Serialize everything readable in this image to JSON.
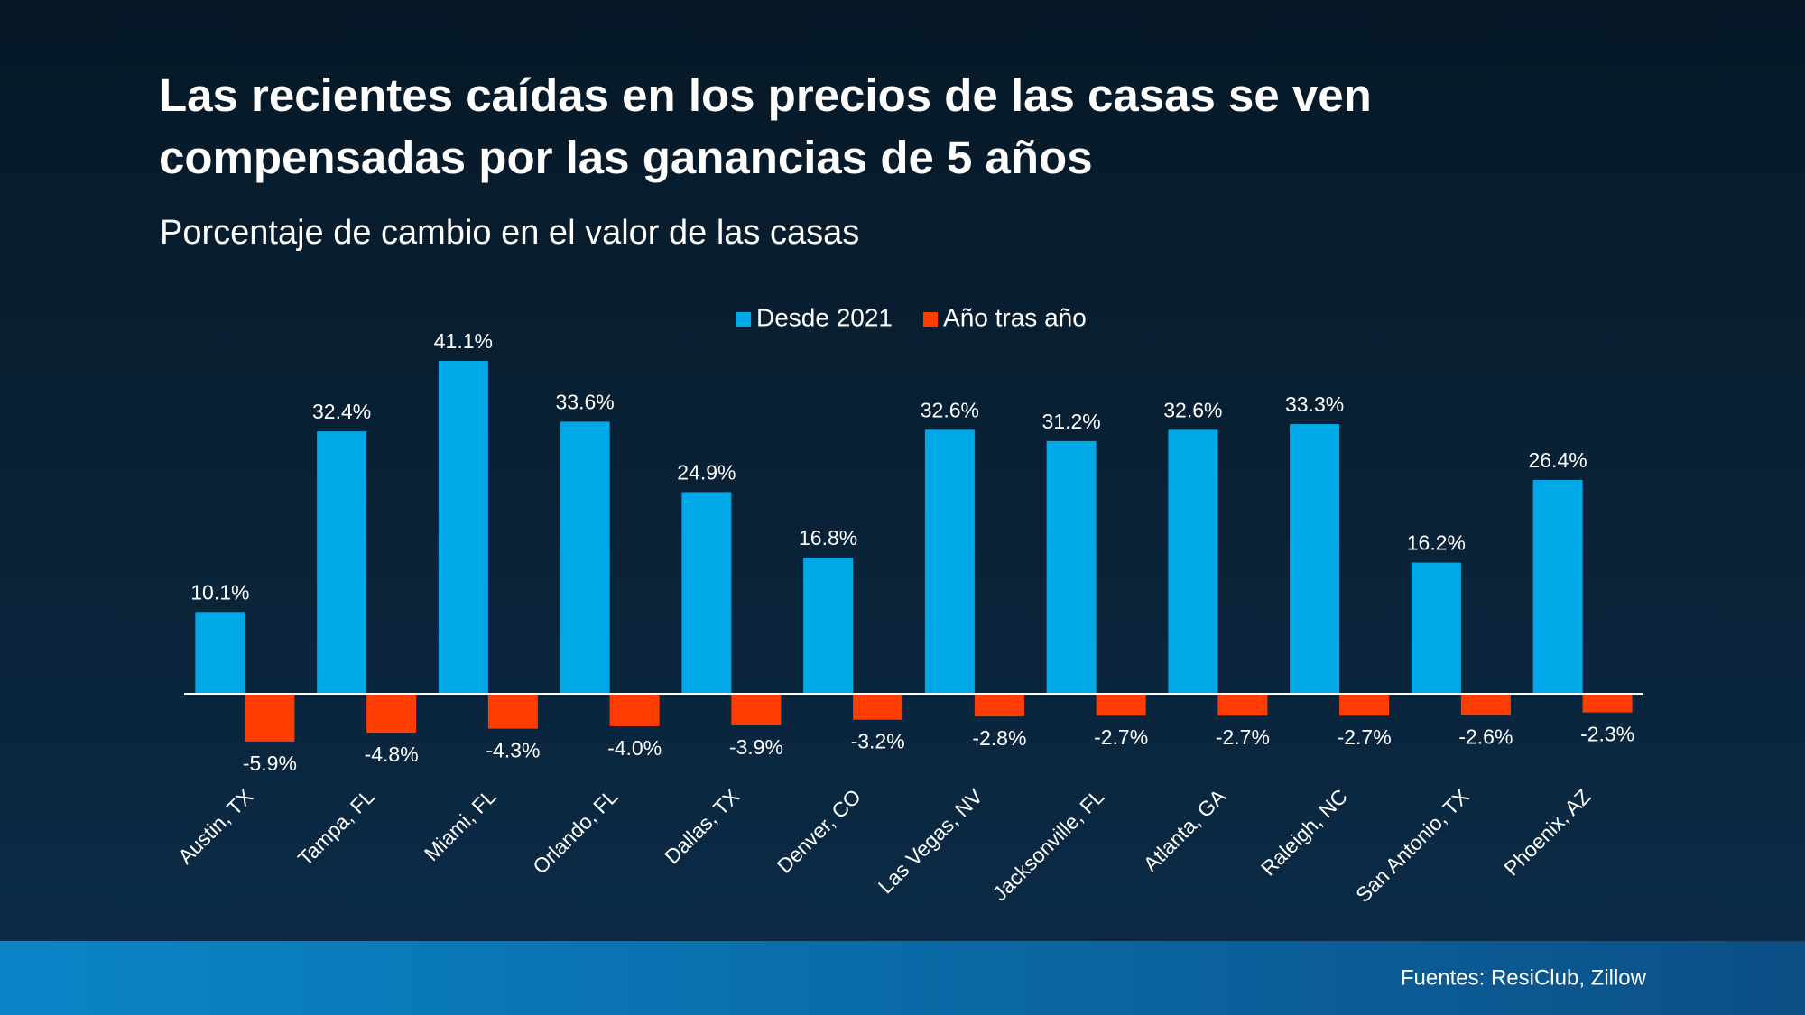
{
  "chart_data": {
    "type": "bar",
    "title": [
      "Las recientes caídas en los precios de las casas se ven",
      "compensadas por las ganancias de 5 años"
    ],
    "subtitle": "Porcentaje de cambio en el valor de las casas",
    "categories": [
      "Austin, TX",
      "Tampa, FL",
      "Miami, FL",
      "Orlando, FL",
      "Dallas, TX",
      "Denver, CO",
      "Las Vegas, NV",
      "Jacksonville, FL",
      "Atlanta, GA",
      "Raleigh, NC",
      "San Antonio, TX",
      "Phoenix, AZ"
    ],
    "series": [
      {
        "name": "Desde 2021",
        "color": "#00a8e8",
        "values": [
          10.1,
          32.4,
          41.1,
          33.6,
          24.9,
          16.8,
          32.6,
          31.2,
          32.6,
          33.3,
          16.2,
          26.4
        ],
        "value_labels": [
          "10.1%",
          "32.4%",
          "41.1%",
          "33.6%",
          "24.9%",
          "16.8%",
          "32.6%",
          "31.2%",
          "32.6%",
          "33.3%",
          "16.2%",
          "26.4%"
        ]
      },
      {
        "name": "Año tras año",
        "color": "#ff3d00",
        "values": [
          -5.9,
          -4.8,
          -4.3,
          -4.0,
          -3.9,
          -3.2,
          -2.8,
          -2.7,
          -2.7,
          -2.7,
          -2.6,
          -2.3
        ],
        "value_labels": [
          "-5.9%",
          "-4.8%",
          "-4.3%",
          "-4.0%",
          "-3.9%",
          "-3.2%",
          "-2.8%",
          "-2.7%",
          "-2.7%",
          "-2.7%",
          "-2.6%",
          "-2.3%"
        ]
      }
    ],
    "source": "Fuentes: ResiClub, Zillow"
  }
}
